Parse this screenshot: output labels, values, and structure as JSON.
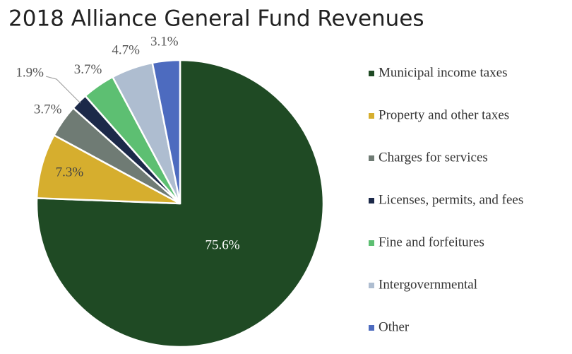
{
  "chart_data": {
    "type": "pie",
    "title": "2018 Alliance General Fund Revenues",
    "categories": [
      "Municipal income taxes",
      "Property and other taxes",
      "Charges for services",
      "Licenses, permits, and fees",
      "Fine and forfeitures",
      "Intergovernmental",
      "Other"
    ],
    "values": [
      75.6,
      7.3,
      3.7,
      1.9,
      3.7,
      4.7,
      3.1
    ],
    "value_labels": [
      "75.6%",
      "7.3%",
      "3.7%",
      "1.9%",
      "3.7%",
      "4.7%",
      "3.1%"
    ],
    "colors": [
      "#1f4a24",
      "#d6ae2e",
      "#6f7b74",
      "#1c2949",
      "#5dbf72",
      "#aebdd0",
      "#4d6bbf"
    ],
    "legend": "right"
  }
}
